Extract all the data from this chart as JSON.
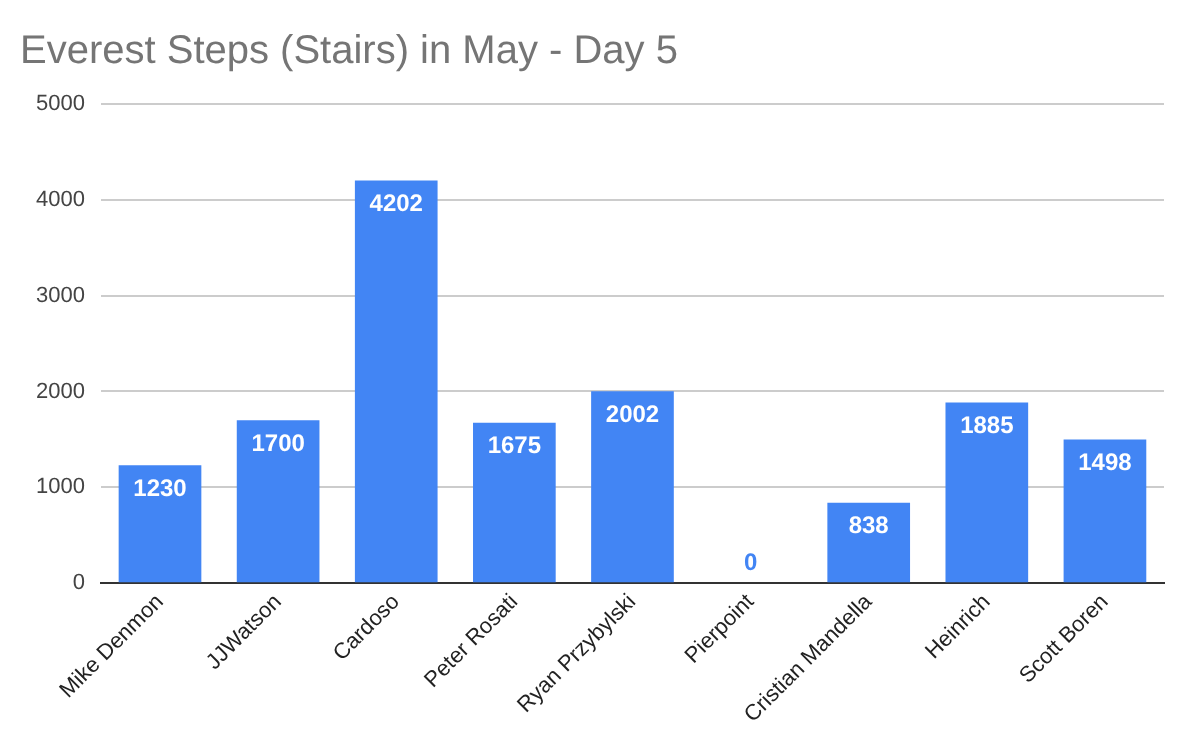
{
  "chart_data": {
    "type": "bar",
    "title": "Everest Steps (Stairs) in May - Day 5",
    "categories": [
      "Mike Denmon",
      "JJWatson",
      "Cardoso",
      "Peter Rosati",
      "Ryan Przybylski",
      "Pierpoint",
      "Cristian Mandella",
      "Heinrich",
      "Scott Boren"
    ],
    "values": [
      1230,
      1700,
      4202,
      1675,
      2002,
      0,
      838,
      1885,
      1498
    ],
    "color": "#4285f4",
    "ylim": [
      0,
      5000
    ],
    "yticks": [
      0,
      1000,
      2000,
      3000,
      4000,
      5000
    ],
    "grid": "y",
    "data_labels": true,
    "legend": false
  }
}
